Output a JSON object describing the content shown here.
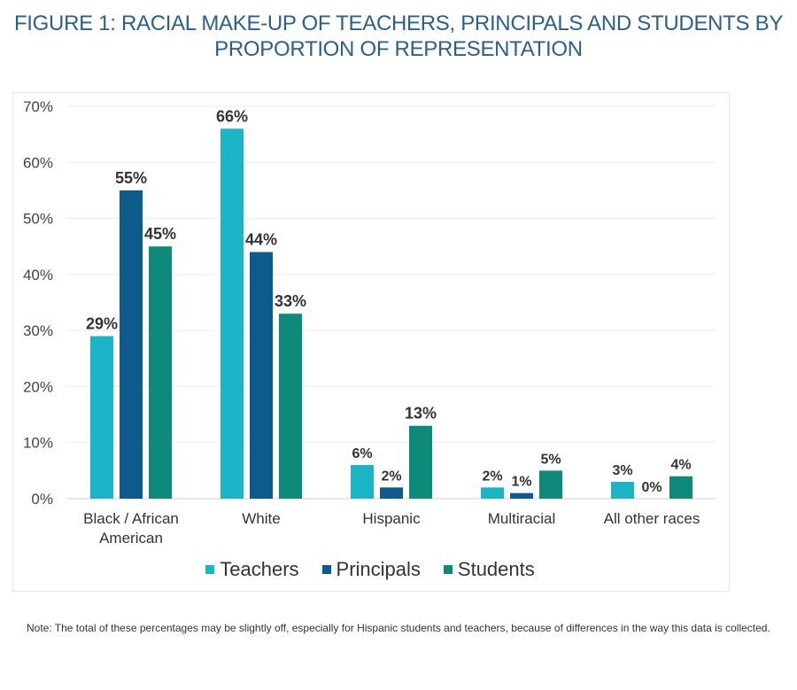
{
  "title_line1": "FIGURE 1: RACIAL MAKE-UP OF TEACHERS, PRINCIPALS AND STUDENTS BY",
  "title_line2": "PROPORTION OF REPRESENTATION",
  "note": "Note: The total of these percentages may be slightly off, especially for Hispanic students and teachers, because of differences in the way this data is collected.",
  "chart_data": {
    "type": "bar",
    "categories": [
      "Black / African American",
      "White",
      "Hispanic",
      "Multiracial",
      "All other races"
    ],
    "category_lines": [
      [
        "Black / African",
        "American"
      ],
      [
        "White"
      ],
      [
        "Hispanic"
      ],
      [
        "Multiracial"
      ],
      [
        "All other races"
      ]
    ],
    "series": [
      {
        "name": "Teachers",
        "values": [
          29,
          66,
          6,
          2,
          3
        ],
        "labels": [
          "29%",
          "66%",
          "6%",
          "2%",
          "3%"
        ],
        "color": "#1ab6c8"
      },
      {
        "name": "Principals",
        "values": [
          55,
          44,
          2,
          1,
          0
        ],
        "labels": [
          "55%",
          "44%",
          "2%",
          "1%",
          "0%"
        ],
        "color": "#0d5b8c"
      },
      {
        "name": "Students",
        "values": [
          45,
          33,
          13,
          5,
          4
        ],
        "labels": [
          "45%",
          "33%",
          "13%",
          "5%",
          "4%"
        ],
        "color": "#0e8a7a"
      }
    ],
    "ylim": [
      0,
      70
    ],
    "yticks": [
      "0%",
      "10%",
      "20%",
      "30%",
      "40%",
      "50%",
      "60%",
      "70%"
    ],
    "grid": true,
    "legend_position": "bottom"
  }
}
